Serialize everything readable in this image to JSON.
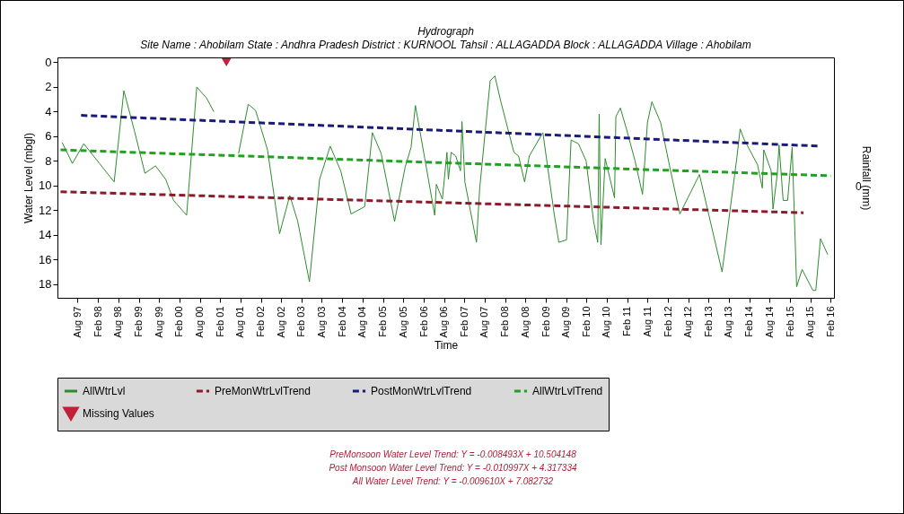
{
  "chart_data": {
    "type": "line",
    "title": "Hydrograph",
    "subtitle": "Site Name : Ahobilam  State : Andhra Pradesh District : KURNOOL  Tahsil : ALLAGADDA  Block : ALLAGADDA Village : Ahobilam",
    "xlabel": "Time",
    "ylabel": "Water Level (mbgl)",
    "y2label": "Rainfall (mm)",
    "xlim": [
      "1997-02-01",
      "2016-03-01"
    ],
    "xticks": [
      {
        "value": "1997-08-01",
        "label": "Aug 97"
      },
      {
        "value": "1998-02-01",
        "label": "Feb 98"
      },
      {
        "value": "1998-08-01",
        "label": "Aug 98"
      },
      {
        "value": "1999-02-01",
        "label": "Feb 99"
      },
      {
        "value": "1999-08-01",
        "label": "Aug 99"
      },
      {
        "value": "2000-02-01",
        "label": "Feb 00"
      },
      {
        "value": "2000-08-01",
        "label": "Aug 00"
      },
      {
        "value": "2001-02-01",
        "label": "Feb 01"
      },
      {
        "value": "2001-08-01",
        "label": "Aug 01"
      },
      {
        "value": "2002-02-01",
        "label": "Feb 02"
      },
      {
        "value": "2002-08-01",
        "label": "Aug 02"
      },
      {
        "value": "2003-02-01",
        "label": "Feb 03"
      },
      {
        "value": "2003-08-01",
        "label": "Aug 03"
      },
      {
        "value": "2004-02-01",
        "label": "Feb 04"
      },
      {
        "value": "2004-08-01",
        "label": "Aug 04"
      },
      {
        "value": "2005-02-01",
        "label": "Feb 05"
      },
      {
        "value": "2005-08-01",
        "label": "Aug 05"
      },
      {
        "value": "2006-02-01",
        "label": "Feb 06"
      },
      {
        "value": "2006-08-01",
        "label": "Aug 06"
      },
      {
        "value": "2007-02-01",
        "label": "Feb 07"
      },
      {
        "value": "2007-08-01",
        "label": "Aug 07"
      },
      {
        "value": "2008-02-01",
        "label": "Feb 08"
      },
      {
        "value": "2008-08-01",
        "label": "Aug 08"
      },
      {
        "value": "2009-02-01",
        "label": "Feb 09"
      },
      {
        "value": "2009-08-01",
        "label": "Aug 09"
      },
      {
        "value": "2010-02-01",
        "label": "Feb 10"
      },
      {
        "value": "2010-08-01",
        "label": "Aug 10"
      },
      {
        "value": "2011-02-01",
        "label": "Feb 11"
      },
      {
        "value": "2011-08-01",
        "label": "Aug 11"
      },
      {
        "value": "2012-02-01",
        "label": "Feb 12"
      },
      {
        "value": "2012-08-01",
        "label": "Aug 12"
      },
      {
        "value": "2013-02-01",
        "label": "Feb 13"
      },
      {
        "value": "2013-08-01",
        "label": "Aug 13"
      },
      {
        "value": "2014-02-01",
        "label": "Feb 14"
      },
      {
        "value": "2014-08-01",
        "label": "Aug 14"
      },
      {
        "value": "2015-02-01",
        "label": "Feb 15"
      },
      {
        "value": "2015-08-01",
        "label": "Aug 15"
      },
      {
        "value": "2016-02-01",
        "label": "Feb 16"
      }
    ],
    "ylim": [
      19.1,
      -0.4
    ],
    "yticks": [
      0,
      2,
      4,
      6,
      8,
      10,
      12,
      14,
      16,
      18
    ],
    "grid": false,
    "legend": "bottom",
    "series": [
      {
        "name": "AllWtrLvl",
        "type": "line",
        "color": "#2e8b2e",
        "line_style": "solid",
        "x": [
          "1997-03-15",
          "1997-06-15",
          "1997-09-25",
          "1998-06-25",
          "1998-09-20",
          "1998-12-25",
          "1999-03-28",
          "1999-07-01",
          "1999-10-01",
          "1999-12-10",
          "2000-04-05",
          "2000-07-05",
          "2000-10-01",
          "2000-12-05",
          "2001-03-28",
          "2001-07-15",
          "2001-10-10",
          "2001-12-15",
          "2002-04-01",
          "2002-07-18",
          "2002-10-18",
          "2002-12-28",
          "2003-04-12",
          "2003-07-12",
          "2003-10-15",
          "2004-01-18",
          "2004-04-20",
          "2004-08-20",
          "2004-10-28",
          "2005-01-15",
          "2005-05-15",
          "2005-08-18",
          "2005-10-10",
          "2005-11-18",
          "2006-02-10",
          "2006-05-10",
          "2006-05-25",
          "2006-07-18",
          "2006-08-28",
          "2006-09-10",
          "2006-10-05",
          "2006-11-15",
          "2006-12-28",
          "2007-01-10",
          "2007-02-05",
          "2007-05-20",
          "2007-06-18",
          "2007-09-20",
          "2007-11-01",
          "2007-12-25",
          "2008-04-20",
          "2008-06-01",
          "2008-07-25",
          "2008-09-05",
          "2009-01-05",
          "2009-04-18",
          "2009-05-28",
          "2009-08-05",
          "2009-09-15",
          "2009-11-20",
          "2010-01-28",
          "2010-04-05",
          "2010-05-12",
          "2010-05-25",
          "2010-06-10",
          "2010-07-18",
          "2010-10-10",
          "2010-10-22",
          "2010-12-01",
          "2011-01-25",
          "2011-04-12",
          "2011-06-18",
          "2011-08-01",
          "2011-09-10",
          "2011-11-28",
          "2012-02-18",
          "2012-05-18",
          "2012-11-10",
          "2013-06-01",
          "2013-10-12",
          "2013-11-10",
          "2013-12-18",
          "2014-04-15",
          "2014-05-28",
          "2014-06-10",
          "2014-08-15",
          "2014-09-01",
          "2014-10-10",
          "2014-10-25",
          "2014-12-01",
          "2015-01-10",
          "2015-02-20",
          "2015-04-01",
          "2015-05-20",
          "2015-08-25",
          "2015-09-20",
          "2015-11-01",
          "2016-01-05"
        ],
        "values": [
          6.5,
          8.2,
          6.6,
          9.7,
          2.3,
          5.6,
          9.0,
          8.4,
          9.5,
          11.2,
          12.4,
          2.0,
          2.9,
          4.0,
          null,
          7.4,
          3.4,
          3.9,
          7.1,
          13.9,
          10.8,
          12.9,
          17.8,
          9.5,
          6.8,
          8.8,
          12.3,
          11.7,
          5.7,
          7.4,
          12.9,
          8.5,
          6.9,
          3.5,
          7.8,
          12.4,
          9.9,
          11.1,
          7.3,
          9.5,
          7.3,
          7.6,
          8.8,
          4.8,
          9.7,
          14.6,
          10.2,
          1.5,
          1.1,
          3.2,
          7.3,
          7.6,
          9.7,
          7.6,
          5.7,
          12.4,
          14.6,
          14.4,
          6.3,
          6.6,
          8.0,
          12.9,
          14.6,
          4.2,
          14.8,
          7.8,
          11.0,
          4.4,
          3.7,
          5.4,
          8.0,
          10.7,
          4.9,
          3.2,
          4.9,
          8.5,
          12.3,
          9.1,
          17.0,
          7.7,
          5.4,
          6.3,
          8.3,
          10.2,
          7.1,
          8.8,
          11.9,
          9.0,
          6.7,
          11.2,
          11.2,
          6.9,
          18.2,
          16.8,
          18.5,
          18.5,
          14.3,
          15.6
        ]
      },
      {
        "name": "PreMonWtrLvlTrend",
        "type": "line",
        "color": "#8b1a2a",
        "line_style": "dashed",
        "x": [
          "1997-03-01",
          "2015-06-01"
        ],
        "values": [
          10.5,
          12.2
        ]
      },
      {
        "name": "PostMonWtrLvlTrend",
        "type": "line",
        "color": "#1a1a7a",
        "line_style": "dashed",
        "x": [
          "1997-09-01",
          "2015-11-01"
        ],
        "values": [
          4.3,
          6.8
        ]
      },
      {
        "name": "AllWtrLvlTrend",
        "type": "line",
        "color": "#22a022",
        "line_style": "dashed",
        "x": [
          "1997-03-01",
          "2016-02-01"
        ],
        "values": [
          7.1,
          9.2
        ]
      },
      {
        "name": "Missing Values",
        "type": "scatter",
        "color": "#c0203a",
        "marker": "triangle",
        "x": [
          "2001-03-28"
        ],
        "values": [
          0
        ]
      }
    ],
    "annotations": [
      "PreMonsoon Water Level Trend: Y = -0.008493X + 10.504148",
      "Post Monsoon Water Level Trend: Y = -0.010997X + 4.317334",
      "All Water Level Trend: Y = -0.009610X + 7.082732",
      "0"
    ]
  }
}
